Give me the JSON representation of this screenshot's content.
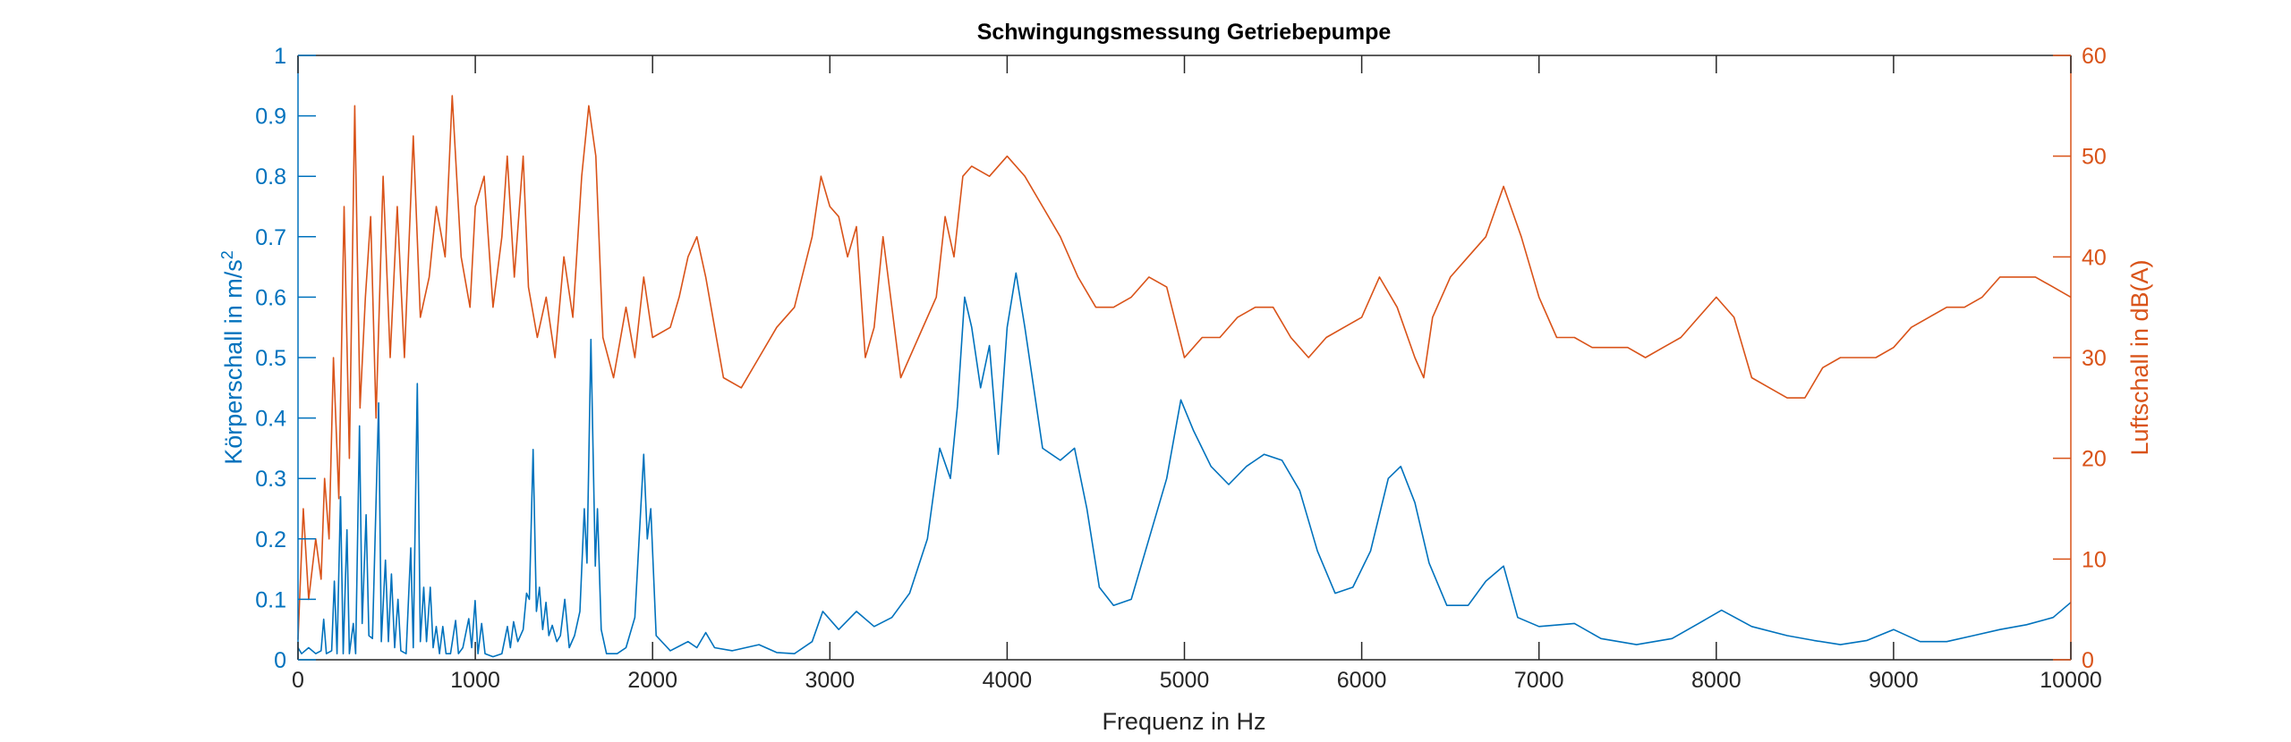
{
  "chart_data": {
    "type": "line",
    "title": "Schwingungsmessung Getriebepumpe",
    "xlabel": "Frequenz in Hz",
    "ylabel_left": "Körperschall in m/s²",
    "ylabel_left_main": "Körperschall in m/s",
    "ylabel_left_sup": "2",
    "ylabel_right": "Luftschall in dB(A)",
    "xlim": [
      0,
      10000
    ],
    "ylim_left": [
      0,
      1
    ],
    "ylim_right": [
      0,
      60
    ],
    "xticks": [
      "0",
      "1000",
      "2000",
      "3000",
      "4000",
      "5000",
      "6000",
      "7000",
      "8000",
      "9000",
      "10000"
    ],
    "yticks_left": [
      "0",
      "0.1",
      "0.2",
      "0.3",
      "0.4",
      "0.5",
      "0.6",
      "0.7",
      "0.8",
      "0.9",
      "1"
    ],
    "yticks_right": [
      "0",
      "10",
      "20",
      "30",
      "40",
      "50",
      "60"
    ],
    "grid": false,
    "colors": {
      "left": "#0072BD",
      "right": "#D95319",
      "axis": "#262626"
    },
    "series": [
      {
        "name": "Körperschall",
        "axis": "left",
        "points": [
          [
            0,
            0.02
          ],
          [
            20,
            0.01
          ],
          [
            60,
            0.02
          ],
          [
            100,
            0.01
          ],
          [
            130,
            0.015
          ],
          [
            145,
            0.067
          ],
          [
            160,
            0.01
          ],
          [
            190,
            0.015
          ],
          [
            205,
            0.13
          ],
          [
            220,
            0.01
          ],
          [
            240,
            0.27
          ],
          [
            255,
            0.01
          ],
          [
            276,
            0.215
          ],
          [
            290,
            0.01
          ],
          [
            312,
            0.06
          ],
          [
            325,
            0.01
          ],
          [
            347,
            0.387
          ],
          [
            362,
            0.06
          ],
          [
            384,
            0.24
          ],
          [
            400,
            0.04
          ],
          [
            420,
            0.035
          ],
          [
            455,
            0.425
          ],
          [
            470,
            0.03
          ],
          [
            493,
            0.165
          ],
          [
            510,
            0.03
          ],
          [
            527,
            0.142
          ],
          [
            545,
            0.02
          ],
          [
            564,
            0.1
          ],
          [
            580,
            0.015
          ],
          [
            610,
            0.01
          ],
          [
            636,
            0.185
          ],
          [
            650,
            0.02
          ],
          [
            673,
            0.457
          ],
          [
            690,
            0.03
          ],
          [
            709,
            0.12
          ],
          [
            725,
            0.03
          ],
          [
            746,
            0.12
          ],
          [
            762,
            0.02
          ],
          [
            780,
            0.055
          ],
          [
            798,
            0.01
          ],
          [
            817,
            0.055
          ],
          [
            835,
            0.01
          ],
          [
            860,
            0.01
          ],
          [
            889,
            0.065
          ],
          [
            905,
            0.01
          ],
          [
            930,
            0.02
          ],
          [
            963,
            0.068
          ],
          [
            980,
            0.02
          ],
          [
            999,
            0.098
          ],
          [
            1015,
            0.01
          ],
          [
            1036,
            0.06
          ],
          [
            1055,
            0.01
          ],
          [
            1100,
            0.005
          ],
          [
            1150,
            0.01
          ],
          [
            1181,
            0.055
          ],
          [
            1198,
            0.02
          ],
          [
            1216,
            0.063
          ],
          [
            1240,
            0.03
          ],
          [
            1270,
            0.05
          ],
          [
            1289,
            0.11
          ],
          [
            1305,
            0.1
          ],
          [
            1326,
            0.348
          ],
          [
            1345,
            0.08
          ],
          [
            1362,
            0.12
          ],
          [
            1380,
            0.05
          ],
          [
            1399,
            0.095
          ],
          [
            1415,
            0.04
          ],
          [
            1434,
            0.057
          ],
          [
            1460,
            0.03
          ],
          [
            1480,
            0.04
          ],
          [
            1505,
            0.1
          ],
          [
            1530,
            0.02
          ],
          [
            1560,
            0.04
          ],
          [
            1590,
            0.08
          ],
          [
            1615,
            0.25
          ],
          [
            1630,
            0.16
          ],
          [
            1652,
            0.53
          ],
          [
            1677,
            0.155
          ],
          [
            1689,
            0.25
          ],
          [
            1710,
            0.05
          ],
          [
            1740,
            0.01
          ],
          [
            1800,
            0.01
          ],
          [
            1850,
            0.02
          ],
          [
            1900,
            0.07
          ],
          [
            1950,
            0.34
          ],
          [
            1970,
            0.2
          ],
          [
            1990,
            0.25
          ],
          [
            2020,
            0.04
          ],
          [
            2100,
            0.015
          ],
          [
            2200,
            0.03
          ],
          [
            2250,
            0.02
          ],
          [
            2300,
            0.045
          ],
          [
            2350,
            0.02
          ],
          [
            2450,
            0.015
          ],
          [
            2600,
            0.025
          ],
          [
            2700,
            0.012
          ],
          [
            2800,
            0.01
          ],
          [
            2900,
            0.03
          ],
          [
            2960,
            0.08
          ],
          [
            3050,
            0.05
          ],
          [
            3150,
            0.08
          ],
          [
            3250,
            0.055
          ],
          [
            3350,
            0.07
          ],
          [
            3450,
            0.11
          ],
          [
            3550,
            0.2
          ],
          [
            3620,
            0.35
          ],
          [
            3680,
            0.3
          ],
          [
            3720,
            0.42
          ],
          [
            3760,
            0.6
          ],
          [
            3800,
            0.55
          ],
          [
            3850,
            0.45
          ],
          [
            3900,
            0.52
          ],
          [
            3950,
            0.34
          ],
          [
            4000,
            0.55
          ],
          [
            4050,
            0.64
          ],
          [
            4100,
            0.55
          ],
          [
            4150,
            0.45
          ],
          [
            4200,
            0.35
          ],
          [
            4300,
            0.33
          ],
          [
            4380,
            0.35
          ],
          [
            4450,
            0.25
          ],
          [
            4520,
            0.12
          ],
          [
            4600,
            0.09
          ],
          [
            4700,
            0.1
          ],
          [
            4800,
            0.2
          ],
          [
            4900,
            0.3
          ],
          [
            4980,
            0.43
          ],
          [
            5050,
            0.38
          ],
          [
            5150,
            0.32
          ],
          [
            5250,
            0.29
          ],
          [
            5350,
            0.32
          ],
          [
            5450,
            0.34
          ],
          [
            5550,
            0.33
          ],
          [
            5650,
            0.28
          ],
          [
            5750,
            0.18
          ],
          [
            5850,
            0.11
          ],
          [
            5950,
            0.12
          ],
          [
            6050,
            0.18
          ],
          [
            6150,
            0.3
          ],
          [
            6220,
            0.32
          ],
          [
            6300,
            0.26
          ],
          [
            6380,
            0.16
          ],
          [
            6480,
            0.09
          ],
          [
            6600,
            0.09
          ],
          [
            6700,
            0.13
          ],
          [
            6800,
            0.155
          ],
          [
            6880,
            0.07
          ],
          [
            7000,
            0.055
          ],
          [
            7200,
            0.06
          ],
          [
            7350,
            0.035
          ],
          [
            7550,
            0.025
          ],
          [
            7750,
            0.035
          ],
          [
            7900,
            0.06
          ],
          [
            8030,
            0.082
          ],
          [
            8200,
            0.055
          ],
          [
            8400,
            0.04
          ],
          [
            8550,
            0.032
          ],
          [
            8700,
            0.025
          ],
          [
            8850,
            0.032
          ],
          [
            9000,
            0.05
          ],
          [
            9150,
            0.03
          ],
          [
            9300,
            0.03
          ],
          [
            9450,
            0.04
          ],
          [
            9600,
            0.05
          ],
          [
            9750,
            0.058
          ],
          [
            9900,
            0.07
          ],
          [
            10000,
            0.095
          ]
        ]
      },
      {
        "name": "Luftschall",
        "axis": "right",
        "points": [
          [
            0,
            2
          ],
          [
            30,
            15
          ],
          [
            60,
            6
          ],
          [
            100,
            12
          ],
          [
            130,
            8
          ],
          [
            150,
            18
          ],
          [
            175,
            12
          ],
          [
            200,
            30
          ],
          [
            230,
            16
          ],
          [
            260,
            45
          ],
          [
            290,
            20
          ],
          [
            320,
            55
          ],
          [
            350,
            25
          ],
          [
            380,
            36
          ],
          [
            410,
            44
          ],
          [
            440,
            24
          ],
          [
            480,
            48
          ],
          [
            520,
            30
          ],
          [
            560,
            45
          ],
          [
            600,
            30
          ],
          [
            650,
            52
          ],
          [
            690,
            34
          ],
          [
            740,
            38
          ],
          [
            780,
            45
          ],
          [
            830,
            40
          ],
          [
            870,
            56
          ],
          [
            920,
            40
          ],
          [
            970,
            35
          ],
          [
            1000,
            45
          ],
          [
            1050,
            48
          ],
          [
            1100,
            35
          ],
          [
            1150,
            42
          ],
          [
            1180,
            50
          ],
          [
            1220,
            38
          ],
          [
            1270,
            50
          ],
          [
            1300,
            37
          ],
          [
            1350,
            32
          ],
          [
            1400,
            36
          ],
          [
            1450,
            30
          ],
          [
            1500,
            40
          ],
          [
            1550,
            34
          ],
          [
            1600,
            48
          ],
          [
            1640,
            55
          ],
          [
            1680,
            50
          ],
          [
            1720,
            32
          ],
          [
            1780,
            28
          ],
          [
            1850,
            35
          ],
          [
            1900,
            30
          ],
          [
            1950,
            38
          ],
          [
            2000,
            32
          ],
          [
            2100,
            33
          ],
          [
            2150,
            36
          ],
          [
            2200,
            40
          ],
          [
            2250,
            42
          ],
          [
            2300,
            38
          ],
          [
            2350,
            33
          ],
          [
            2400,
            28
          ],
          [
            2500,
            27
          ],
          [
            2600,
            30
          ],
          [
            2700,
            33
          ],
          [
            2800,
            35
          ],
          [
            2900,
            42
          ],
          [
            2950,
            48
          ],
          [
            3000,
            45
          ],
          [
            3050,
            44
          ],
          [
            3100,
            40
          ],
          [
            3150,
            43
          ],
          [
            3200,
            30
          ],
          [
            3250,
            33
          ],
          [
            3300,
            42
          ],
          [
            3350,
            35
          ],
          [
            3400,
            28
          ],
          [
            3500,
            32
          ],
          [
            3600,
            36
          ],
          [
            3650,
            44
          ],
          [
            3700,
            40
          ],
          [
            3750,
            48
          ],
          [
            3800,
            49
          ],
          [
            3900,
            48
          ],
          [
            4000,
            50
          ],
          [
            4100,
            48
          ],
          [
            4200,
            45
          ],
          [
            4300,
            42
          ],
          [
            4400,
            38
          ],
          [
            4500,
            35
          ],
          [
            4600,
            35
          ],
          [
            4700,
            36
          ],
          [
            4800,
            38
          ],
          [
            4900,
            37
          ],
          [
            5000,
            30
          ],
          [
            5100,
            32
          ],
          [
            5200,
            32
          ],
          [
            5300,
            34
          ],
          [
            5400,
            35
          ],
          [
            5500,
            35
          ],
          [
            5600,
            32
          ],
          [
            5700,
            30
          ],
          [
            5800,
            32
          ],
          [
            5900,
            33
          ],
          [
            6000,
            34
          ],
          [
            6100,
            38
          ],
          [
            6200,
            35
          ],
          [
            6300,
            30
          ],
          [
            6350,
            28
          ],
          [
            6400,
            34
          ],
          [
            6500,
            38
          ],
          [
            6600,
            40
          ],
          [
            6700,
            42
          ],
          [
            6800,
            47
          ],
          [
            6900,
            42
          ],
          [
            7000,
            36
          ],
          [
            7100,
            32
          ],
          [
            7200,
            32
          ],
          [
            7300,
            31
          ],
          [
            7400,
            31
          ],
          [
            7500,
            31
          ],
          [
            7600,
            30
          ],
          [
            7700,
            31
          ],
          [
            7800,
            32
          ],
          [
            7900,
            34
          ],
          [
            8000,
            36
          ],
          [
            8100,
            34
          ],
          [
            8200,
            28
          ],
          [
            8300,
            27
          ],
          [
            8400,
            26
          ],
          [
            8500,
            26
          ],
          [
            8600,
            29
          ],
          [
            8700,
            30
          ],
          [
            8800,
            30
          ],
          [
            8900,
            30
          ],
          [
            9000,
            31
          ],
          [
            9100,
            33
          ],
          [
            9200,
            34
          ],
          [
            9300,
            35
          ],
          [
            9400,
            35
          ],
          [
            9500,
            36
          ],
          [
            9600,
            38
          ],
          [
            9700,
            38
          ],
          [
            9800,
            38
          ],
          [
            9900,
            37
          ],
          [
            10000,
            36
          ]
        ]
      }
    ]
  }
}
